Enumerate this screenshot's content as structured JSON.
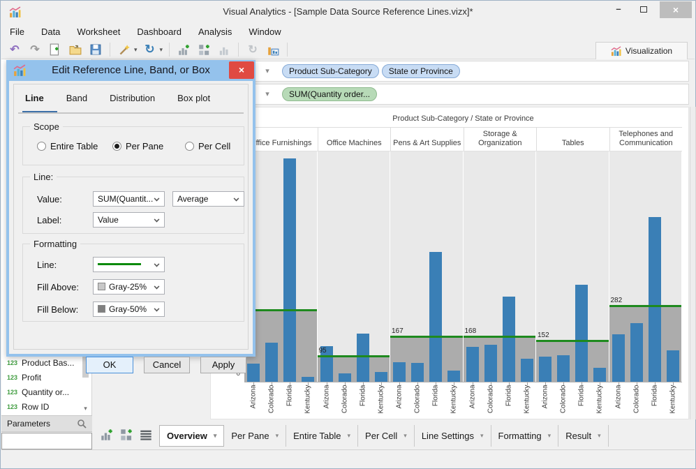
{
  "window": {
    "title": "Visual Analytics - [Sample Data Source Reference Lines.vizx]*"
  },
  "menu": {
    "items": [
      "File",
      "Data",
      "Worksheet",
      "Dashboard",
      "Analysis",
      "Window"
    ]
  },
  "toolbar": {
    "visualization_tab": "Visualization"
  },
  "shelves": {
    "columns": {
      "pills": [
        {
          "label": "Product Sub-Category",
          "type": "dimension"
        },
        {
          "label": "State or Province",
          "type": "dimension"
        }
      ]
    },
    "rows": {
      "pills": [
        {
          "label": "SUM(Quantity order...",
          "type": "measure"
        }
      ]
    }
  },
  "dialog": {
    "title": "Edit Reference Line, Band, or Box",
    "tabs": [
      "Line",
      "Band",
      "Distribution",
      "Box plot"
    ],
    "active_tab": "Line",
    "scope": {
      "legend": "Scope",
      "options": [
        "Entire Table",
        "Per Pane",
        "Per Cell"
      ],
      "selected": "Per Pane"
    },
    "line": {
      "legend": "Line:",
      "value_label": "Value:",
      "value": "SUM(Quantit...",
      "aggregation": "Average",
      "label_label": "Label:",
      "label_value": "Value"
    },
    "formatting": {
      "legend": "Formatting",
      "line_label": "Line:",
      "line_color": "#0a8a0a",
      "fill_above_label": "Fill Above:",
      "fill_above": "Gray-25%",
      "fill_below_label": "Fill Below:",
      "fill_below": "Gray-50%"
    },
    "buttons": {
      "ok": "OK",
      "cancel": "Cancel",
      "apply": "Apply"
    }
  },
  "sidebar": {
    "fields": [
      {
        "icon": "123",
        "label": "Product Bas..."
      },
      {
        "icon": "123",
        "label": "Profit"
      },
      {
        "icon": "123",
        "label": "Quantity or..."
      },
      {
        "icon": "123",
        "label": "Row ID"
      }
    ],
    "parameters_label": "Parameters"
  },
  "sheet_tabs": {
    "tabs": [
      {
        "label": "Overview",
        "selected": true
      },
      {
        "label": "Per Pane",
        "selected": false
      },
      {
        "label": "Entire Table",
        "selected": false
      },
      {
        "label": "Per Cell",
        "selected": false
      },
      {
        "label": "Line Settings",
        "selected": false
      },
      {
        "label": "Formatting",
        "selected": false
      },
      {
        "label": "Result",
        "selected": false
      }
    ]
  },
  "chart_data": {
    "type": "bar",
    "title": "Product Sub-Category / State or Province",
    "x_axis": {
      "level1": "Product Sub-Category",
      "level2": "State or Province"
    },
    "states": [
      "Arizona",
      "Colorado",
      "Florida",
      "Kentucky"
    ],
    "y_axis": {
      "visible_tick_labels": [
        "0"
      ],
      "ylim": [
        0,
        860
      ]
    },
    "panes": [
      {
        "category": "Office Furnishings",
        "values": [
          68,
          146,
          835,
          19
        ],
        "reference_line": 267,
        "reference_label": ""
      },
      {
        "category": "Office Machines",
        "values": [
          134,
          31,
          179,
          36
        ],
        "reference_line": 95,
        "reference_label": "95"
      },
      {
        "category": "Pens & Art Supplies",
        "values": [
          73,
          70,
          484,
          41
        ],
        "reference_line": 167,
        "reference_label": "167"
      },
      {
        "category": "Storage & Organization",
        "values": [
          130,
          139,
          317,
          85
        ],
        "reference_line": 168,
        "reference_label": "168"
      },
      {
        "category": "Tables",
        "values": [
          95,
          100,
          363,
          51
        ],
        "reference_line": 152,
        "reference_label": "152"
      },
      {
        "category": "Telephones and Communication",
        "values": [
          178,
          218,
          616,
          116
        ],
        "reference_line": 282,
        "reference_label": "282"
      }
    ],
    "reference_line_aggregation": "Average",
    "colors": {
      "bar": "#3a7fb6",
      "reference_line": "#1e8a1e",
      "fill_above": "#e9e9e9",
      "fill_below": "#acacac"
    },
    "grid": false,
    "legend_position": "none"
  }
}
